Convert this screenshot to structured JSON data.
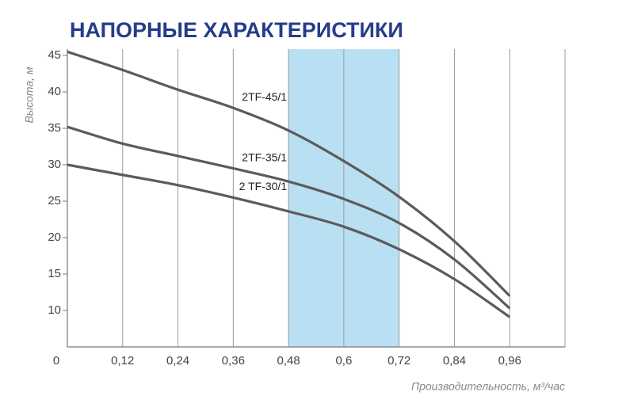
{
  "chart_data": {
    "type": "line",
    "title": "НАПОРНЫЕ ХАРАКТЕРИСТИКИ",
    "y_label": "Высота, м",
    "x_label": "Производительность, м³/час",
    "x": [
      0,
      0.12,
      0.24,
      0.36,
      0.48,
      0.6,
      0.72,
      0.84,
      0.96
    ],
    "series": [
      {
        "name": "2TF-45/1",
        "color": "#5b5b5d",
        "values": [
          45.5,
          43,
          40.3,
          37.8,
          34.7,
          30.5,
          25.6,
          19.5,
          12
        ]
      },
      {
        "name": "2TF-35/1",
        "color": "#5b5b5d",
        "values": [
          35.2,
          32.9,
          31.2,
          29.5,
          27.7,
          25.3,
          22,
          17,
          10.3
        ]
      },
      {
        "name": "2 TF-30/1",
        "color": "#5b5b5d",
        "values": [
          30,
          28.6,
          27.2,
          25.5,
          23.6,
          21.5,
          18.4,
          14.3,
          9.1
        ]
      }
    ],
    "shaded_range": [
      0.48,
      0.72
    ],
    "shade_color": "#b9e0f2",
    "xlim": [
      0,
      1.08
    ],
    "ylim": [
      5,
      45
    ],
    "xticks": [
      0,
      {
        "value": 0.12,
        "label": "0,12"
      },
      {
        "value": 0.24,
        "label": "0,24"
      },
      {
        "value": 0.36,
        "label": "0,36"
      },
      {
        "value": 0.48,
        "label": "0,48"
      },
      {
        "value": 0.6,
        "label": "0,6"
      },
      {
        "value": 0.72,
        "label": "0,72"
      },
      {
        "value": 0.84,
        "label": "0,84"
      },
      {
        "value": 0.96,
        "label": "0,96"
      }
    ],
    "yticks": [
      10,
      15,
      20,
      25,
      30,
      35,
      40,
      45
    ],
    "grid": "x"
  }
}
